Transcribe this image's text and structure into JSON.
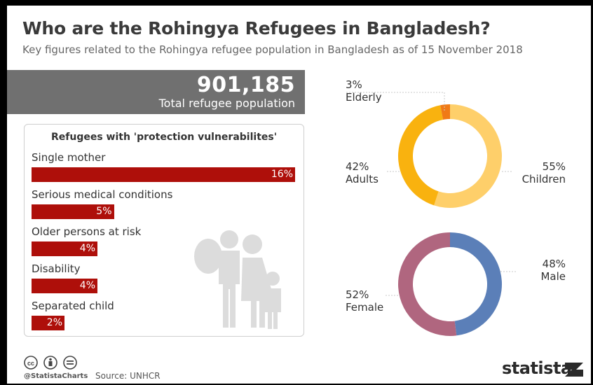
{
  "title": "Who are the Rohingya Refugees in Bangladesh?",
  "subtitle": "Key figures related to the Rohingya refugee population in Bangladesh as of 15 November 2018",
  "total": {
    "value": "901,185",
    "label": "Total refugee population"
  },
  "colors": {
    "bar": "#ae0f0a",
    "children": "#fecf6a",
    "adults": "#f9b20f",
    "elderly": "#f07a16",
    "male": "#5b7fb8",
    "female": "#b0667f",
    "total_box": "#707070"
  },
  "icons": [
    "family-silhouette-icon",
    "creative-commons-icon",
    "attribution-icon",
    "equals-icon",
    "statista-logo-icon"
  ],
  "footer": {
    "handle": "@StatistaCharts",
    "source": "Source: UNHCR",
    "brand": "statista"
  },
  "chart_data": [
    {
      "type": "bar",
      "orientation": "horizontal",
      "title": "Refugees with 'protection vulnerabilites'",
      "categories": [
        "Single mother",
        "Serious medical conditions",
        "Older persons at risk",
        "Disability",
        "Separated child"
      ],
      "values": [
        16,
        5,
        4,
        4,
        2
      ],
      "labels": [
        "16%",
        "5%",
        "4%",
        "4%",
        "2%"
      ],
      "unit": "%"
    },
    {
      "type": "pie",
      "style": "donut",
      "categories": [
        "Children",
        "Adults",
        "Elderly"
      ],
      "values": [
        55,
        42,
        3
      ],
      "labels": [
        "55%",
        "42%",
        "3%"
      ]
    },
    {
      "type": "pie",
      "style": "donut",
      "categories": [
        "Male",
        "Female"
      ],
      "values": [
        48,
        52
      ],
      "labels": [
        "48%",
        "52%"
      ]
    }
  ]
}
